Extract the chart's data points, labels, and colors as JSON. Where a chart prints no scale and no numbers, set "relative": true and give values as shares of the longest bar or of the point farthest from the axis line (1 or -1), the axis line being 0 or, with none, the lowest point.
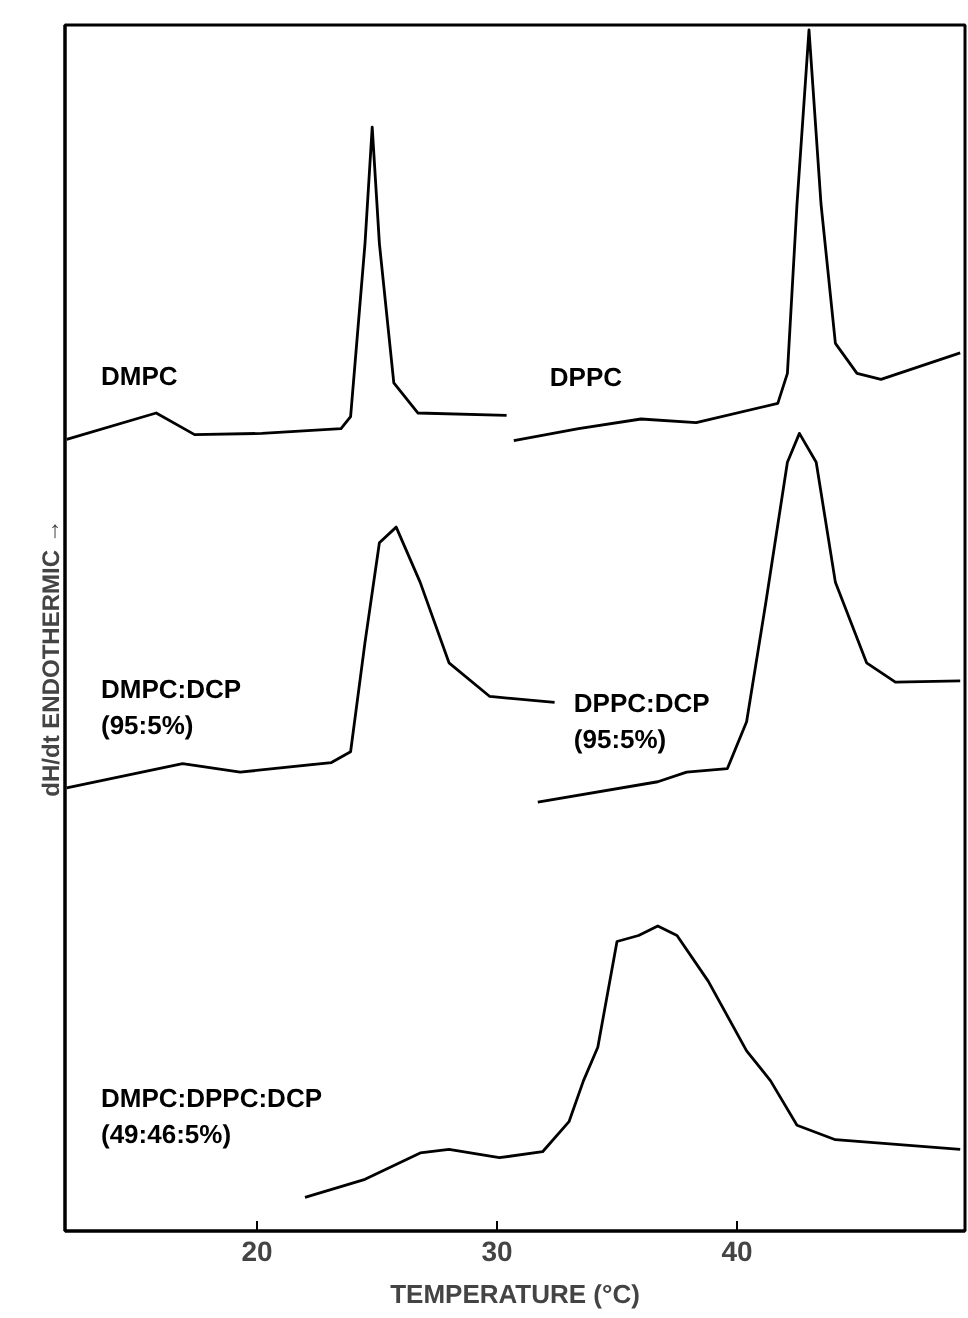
{
  "chart_data": {
    "type": "line",
    "relative": true,
    "xlabel": "TEMPERATURE (°C)",
    "ylabel": "dH/dt          ENDOTHERMIC →",
    "xlim": [
      12,
      49.5
    ],
    "xticks": [
      20,
      30,
      40
    ],
    "grid": false,
    "marker": "none",
    "line_style": "solid",
    "series": [
      {
        "name": "DMPC",
        "color": "#000000",
        "x": [
          12.07,
          15.8,
          17.4,
          20.2,
          23.5,
          23.9,
          24.5,
          24.8,
          25.1,
          25.7,
          26.7,
          30.4
        ],
        "values": [
          0.659,
          0.681,
          0.663,
          0.664,
          0.668,
          0.678,
          0.822,
          0.919,
          0.822,
          0.706,
          0.681,
          0.679
        ]
      },
      {
        "name": "DPPC",
        "color": "#000000",
        "x": [
          30.7,
          33.4,
          36.0,
          38.3,
          41.7,
          42.1,
          42.5,
          43.0,
          43.5,
          44.1,
          45.0,
          46.0,
          49.3
        ],
        "values": [
          0.658,
          0.668,
          0.676,
          0.673,
          0.689,
          0.714,
          0.855,
          1.0,
          0.855,
          0.739,
          0.714,
          0.709,
          0.731
        ]
      },
      {
        "name": "DMPC:DCP\n(95:5%)",
        "color": "#000000",
        "x": [
          12.07,
          16.9,
          19.3,
          23.1,
          23.9,
          24.5,
          25.1,
          25.8,
          26.8,
          28.0,
          29.7,
          32.4
        ],
        "values": [
          0.369,
          0.389,
          0.382,
          0.39,
          0.399,
          0.49,
          0.573,
          0.586,
          0.54,
          0.473,
          0.445,
          0.44
        ]
      },
      {
        "name": "DPPC:DCP\n(95:5%)",
        "color": "#000000",
        "x": [
          31.7,
          36.7,
          37.9,
          39.6,
          40.4,
          41.2,
          42.1,
          42.6,
          43.3,
          44.1,
          45.4,
          46.6,
          49.3
        ],
        "values": [
          0.357,
          0.374,
          0.382,
          0.385,
          0.424,
          0.523,
          0.64,
          0.664,
          0.64,
          0.54,
          0.473,
          0.457,
          0.458
        ]
      },
      {
        "name": "DMPC:DPPC:DCP\n(49:46:5%)",
        "color": "#000000",
        "x": [
          22.0,
          24.5,
          26.8,
          28.0,
          30.1,
          31.9,
          33.0,
          33.6,
          34.2,
          35.0,
          35.9,
          36.7,
          37.5,
          38.8,
          40.4,
          41.4,
          42.5,
          44.1,
          49.3
        ],
        "values": [
          0.028,
          0.043,
          0.065,
          0.068,
          0.061,
          0.066,
          0.091,
          0.125,
          0.153,
          0.241,
          0.246,
          0.254,
          0.246,
          0.208,
          0.15,
          0.125,
          0.088,
          0.076,
          0.068
        ]
      }
    ]
  }
}
